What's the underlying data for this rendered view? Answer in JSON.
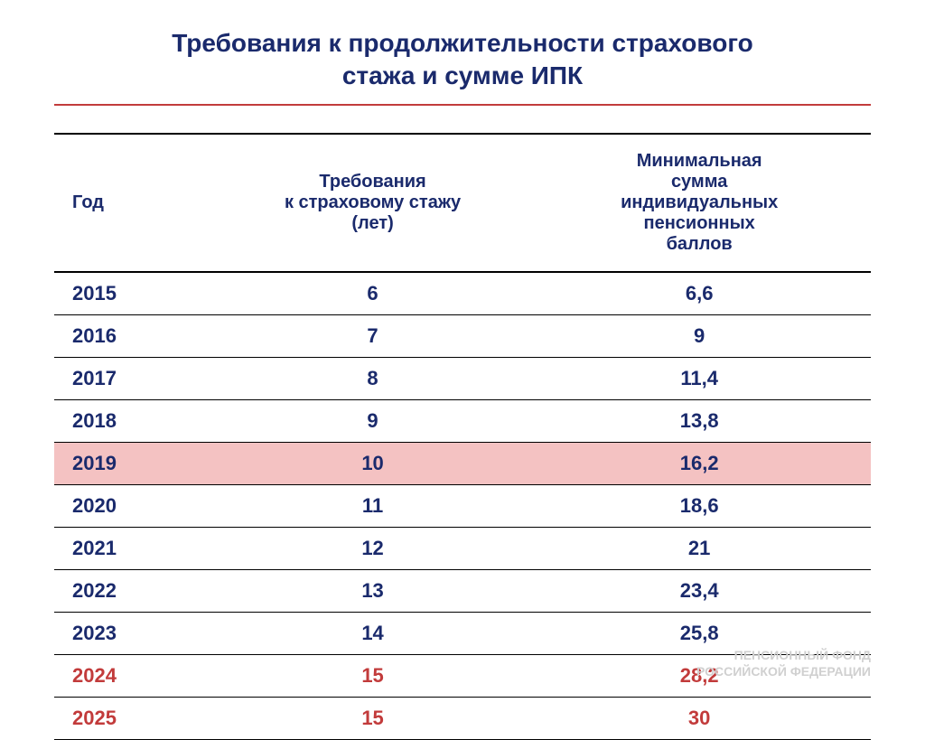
{
  "title": {
    "line1": "Требования к продолжительности страхового",
    "line2": "стажа и сумме ИПК"
  },
  "table": {
    "headers": {
      "col1": "Год",
      "col2_line1": "Требования",
      "col2_line2": "к страховому стажу",
      "col2_line3": "(лет)",
      "col3_line1": "Минимальная",
      "col3_line2": "сумма",
      "col3_line3": "индивидуальных",
      "col3_line4": "пенсионных",
      "col3_line5": "баллов"
    },
    "rows": [
      {
        "year": "2015",
        "stazh": "6",
        "ipk": "6,6",
        "highlighted": false,
        "red": false
      },
      {
        "year": "2016",
        "stazh": "7",
        "ipk": "9",
        "highlighted": false,
        "red": false
      },
      {
        "year": "2017",
        "stazh": "8",
        "ipk": "11,4",
        "highlighted": false,
        "red": false
      },
      {
        "year": "2018",
        "stazh": "9",
        "ipk": "13,8",
        "highlighted": false,
        "red": false
      },
      {
        "year": "2019",
        "stazh": "10",
        "ipk": "16,2",
        "highlighted": true,
        "red": false
      },
      {
        "year": "2020",
        "stazh": "11",
        "ipk": "18,6",
        "highlighted": false,
        "red": false
      },
      {
        "year": "2021",
        "stazh": "12",
        "ipk": "21",
        "highlighted": false,
        "red": false
      },
      {
        "year": "2022",
        "stazh": "13",
        "ipk": "23,4",
        "highlighted": false,
        "red": false
      },
      {
        "year": "2023",
        "stazh": "14",
        "ipk": "25,8",
        "highlighted": false,
        "red": false
      },
      {
        "year": "2024",
        "stazh": "15",
        "ipk": "28,2",
        "highlighted": false,
        "red": true
      },
      {
        "year": "2025",
        "stazh": "15",
        "ipk": "30",
        "highlighted": false,
        "red": true
      }
    ]
  },
  "footer": {
    "line1": "ПЕНСИОННЫЙ ФОНД",
    "line2": "РОССИЙСКОЙ ФЕДЕРАЦИИ"
  },
  "colors": {
    "primary_text": "#1a2a6c",
    "red_text": "#c23b3b",
    "highlight_bg": "#f4c2c2",
    "underline": "#c23b3b",
    "border": "#000000",
    "footer_text": "#d0d0d0",
    "background": "#ffffff"
  }
}
